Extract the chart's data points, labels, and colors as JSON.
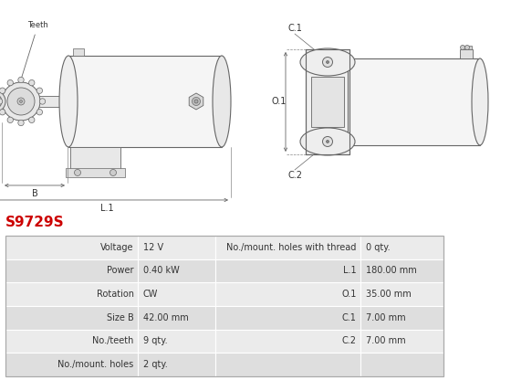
{
  "title": "S9729S",
  "title_color": "#cc0000",
  "bg_color": "#ffffff",
  "table_left_cols": [
    "Voltage",
    "Power",
    "Rotation",
    "Size B",
    "No./teeth",
    "No./mount. holes"
  ],
  "table_left_vals": [
    "12 V",
    "0.40 kW",
    "CW",
    "42.00 mm",
    "9 qty.",
    "2 qty."
  ],
  "table_right_cols": [
    "No./mount. holes with thread",
    "L.1",
    "O.1",
    "C.1",
    "C.2",
    ""
  ],
  "table_right_vals": [
    "0 qty.",
    "180.00 mm",
    "35.00 mm",
    "7.00 mm",
    "7.00 mm",
    ""
  ],
  "font_size": 7.0,
  "title_fontsize": 11,
  "row_color_a": "#ebebeb",
  "row_color_b": "#dedede",
  "border_color": "#ffffff",
  "line_color": "#666666",
  "text_color": "#333333"
}
